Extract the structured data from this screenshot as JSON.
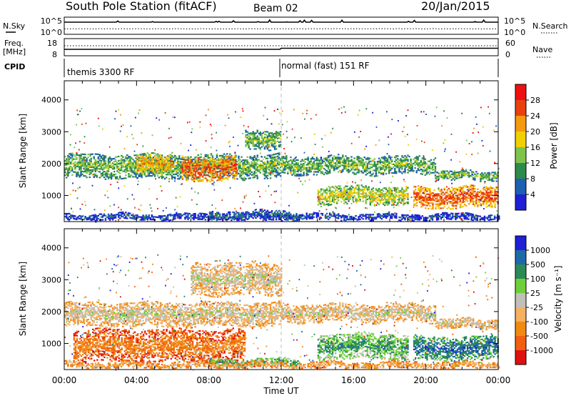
{
  "header": {
    "title": "South Pole Station (fitACF)",
    "beam": "Beam 02",
    "date": "20/Jan/2015"
  },
  "status_panels": {
    "nsky_label": "N.Sky",
    "nsearch_label": "N.Search",
    "freq_label_line1": "Freq.",
    "freq_label_line2": "[MHz]",
    "nave_label": "Nave",
    "cpid_label": "CPID",
    "noise_left_ticks": [
      "10^5",
      "10^0"
    ],
    "noise_right_ticks": [
      "10^5",
      "10^0"
    ],
    "freq_left_ticks": [
      "18",
      "8"
    ],
    "freq_right_ticks": [
      "60",
      "0"
    ],
    "cpid_segments": [
      {
        "label": "themis 3300 RF",
        "start_hour": 0
      },
      {
        "label": "normal (fast) 151 RF",
        "start_hour": 12
      }
    ]
  },
  "chart_data": [
    {
      "type": "heatmap",
      "name": "Power",
      "xlabel": "Time UT",
      "ylabel": "Slant Range [km]",
      "x_ticks": [
        "00:00",
        "04:00",
        "08:00",
        "12:00",
        "16:00",
        "20:00",
        "00:00"
      ],
      "xlim_hours": [
        0,
        24
      ],
      "y_ticks": [
        1000,
        2000,
        3000,
        4000
      ],
      "ylim_km": [
        180,
        4600
      ],
      "colorbar_label": "Power [dB]",
      "colorbar_ticks": [
        "4",
        "8",
        "12",
        "16",
        "20",
        "24",
        "28"
      ],
      "colorbar_colors": [
        "#1f1fd6",
        "#1e5fb0",
        "#2e8a4a",
        "#7ec44a",
        "#f0d000",
        "#f59a10",
        "#e84010",
        "#ee1010"
      ],
      "bands": [
        {
          "t0": 0.0,
          "t1": 12.0,
          "r0": 1520,
          "r1": 2280,
          "level": 3
        },
        {
          "t0": 12.0,
          "t1": 20.5,
          "r0": 1650,
          "r1": 2200,
          "level": 3
        },
        {
          "t0": 20.5,
          "t1": 24.0,
          "r0": 1450,
          "r1": 1750,
          "level": 3
        },
        {
          "t0": 4.0,
          "t1": 6.0,
          "r0": 1700,
          "r1": 2300,
          "level": 5
        },
        {
          "t0": 6.5,
          "t1": 9.5,
          "r0": 1450,
          "r1": 2200,
          "level": 6
        },
        {
          "t0": 10.0,
          "t1": 12.0,
          "r0": 2450,
          "r1": 3050,
          "level": 3
        },
        {
          "t0": 14.0,
          "t1": 19.0,
          "r0": 700,
          "r1": 1250,
          "level": 4
        },
        {
          "t0": 19.3,
          "t1": 24.0,
          "r0": 600,
          "r1": 1250,
          "level": 6
        },
        {
          "t0": 8.0,
          "t1": 13.0,
          "r0": 250,
          "r1": 480,
          "level": 2
        },
        {
          "t0": 0.0,
          "t1": 24.0,
          "r0": 200,
          "r1": 420,
          "level": 1
        }
      ]
    },
    {
      "type": "heatmap",
      "name": "Velocity",
      "xlabel": "Time UT",
      "ylabel": "Slant Range [km]",
      "x_ticks": [
        "00:00",
        "04:00",
        "08:00",
        "12:00",
        "16:00",
        "20:00",
        "00:00"
      ],
      "xlim_hours": [
        0,
        24
      ],
      "y_ticks": [
        1000,
        2000,
        3000,
        4000
      ],
      "ylim_km": [
        180,
        4600
      ],
      "colorbar_label": "Velocity [m s⁻¹]",
      "colorbar_ticks": [
        "1000",
        "500",
        "100",
        "25",
        "-25",
        "-100",
        "-500",
        "-1000"
      ],
      "colorbar_colors": [
        "#1f1fd6",
        "#1e6aa8",
        "#2a8a55",
        "#6fcf3a",
        "#c0c0b8",
        "#f5b060",
        "#f08a10",
        "#f06010",
        "#e01010"
      ],
      "bands": [
        {
          "t0": 0.0,
          "t1": 12.0,
          "r0": 1520,
          "r1": 2280,
          "level": 4
        },
        {
          "t0": 12.0,
          "t1": 20.5,
          "r0": 1650,
          "r1": 2200,
          "level": 4
        },
        {
          "t0": 20.5,
          "t1": 24.0,
          "r0": 1450,
          "r1": 1750,
          "level": 4
        },
        {
          "t0": 7.0,
          "t1": 12.0,
          "r0": 2500,
          "r1": 3500,
          "level": 4
        },
        {
          "t0": 0.5,
          "t1": 10.0,
          "r0": 400,
          "r1": 1400,
          "level": 2
        },
        {
          "t0": 14.0,
          "t1": 19.0,
          "r0": 500,
          "r1": 1300,
          "level": 6
        },
        {
          "t0": 19.3,
          "t1": 24.0,
          "r0": 450,
          "r1": 1200,
          "level": 7
        },
        {
          "t0": 8.0,
          "t1": 13.0,
          "r0": 250,
          "r1": 500,
          "level": 6
        },
        {
          "t0": 0.0,
          "t1": 24.0,
          "r0": 200,
          "r1": 400,
          "level": 3
        }
      ]
    }
  ]
}
